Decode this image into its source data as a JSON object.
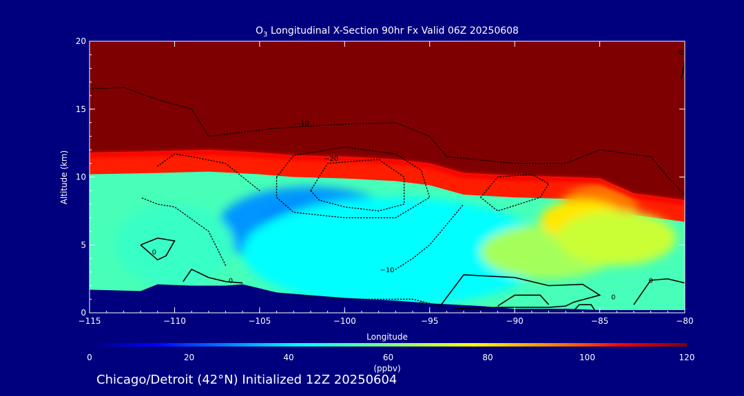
{
  "chart_data": {
    "type": "heatmap",
    "title_prefix": "O",
    "title_subscript": "3",
    "title_rest": " Longitudinal X-Section 90hr  Fx Valid 06Z 20250608",
    "xlabel": "Longitude",
    "ylabel": "Altitude (km)",
    "xlim": [
      -115,
      -80
    ],
    "ylim": [
      0,
      20
    ],
    "x_ticks": [
      -115,
      -110,
      -105,
      -100,
      -95,
      -90,
      -85,
      -80
    ],
    "x_tick_labels": [
      "−115",
      "−110",
      "−105",
      "−100",
      "−95",
      "−90",
      "−85",
      "−80"
    ],
    "y_ticks": [
      0,
      5,
      10,
      15,
      20
    ],
    "y_tick_labels": [
      "0",
      "5",
      "10",
      "15",
      "20"
    ],
    "colorbar": {
      "min": 0,
      "max": 120,
      "ticks": [
        0,
        20,
        40,
        60,
        80,
        100,
        120
      ],
      "tick_labels": [
        "0",
        "20",
        "40",
        "60",
        "80",
        "100",
        "120"
      ],
      "unit_label": "(ppbv)"
    },
    "tropopause_km": [
      [
        -115,
        11.8
      ],
      [
        -111,
        11.9
      ],
      [
        -108,
        12.0
      ],
      [
        -105,
        11.8
      ],
      [
        -103,
        11.6
      ],
      [
        -100,
        11.5
      ],
      [
        -97,
        11.3
      ],
      [
        -95,
        11.0
      ],
      [
        -93,
        10.3
      ],
      [
        -90,
        10.1
      ],
      [
        -87,
        10.0
      ],
      [
        -85,
        9.9
      ],
      [
        -83,
        8.8
      ],
      [
        -80,
        8.3
      ]
    ],
    "terrain_km": [
      [
        -115,
        1.7
      ],
      [
        -112,
        1.6
      ],
      [
        -111,
        2.1
      ],
      [
        -109,
        2.0
      ],
      [
        -107,
        2.0
      ],
      [
        -106,
        2.1
      ],
      [
        -104,
        1.5
      ],
      [
        -102,
        1.3
      ],
      [
        -100,
        1.1
      ],
      [
        -97,
        0.9
      ],
      [
        -95,
        0.7
      ],
      [
        -92,
        0.5
      ],
      [
        -90,
        0.3
      ],
      [
        -87,
        0.3
      ],
      [
        -85,
        0.2
      ],
      [
        -80,
        0.2
      ]
    ],
    "anomalies": [
      {
        "lon": -102,
        "alt": 6.3,
        "rx": 5.5,
        "ry": 3.0,
        "value": 30
      },
      {
        "lon": -102,
        "alt": 6.4,
        "rx": 3.0,
        "ry": 1.5,
        "value": 25
      },
      {
        "lon": -97,
        "alt": 4.5,
        "rx": 9.0,
        "ry": 4.0,
        "value": 42
      },
      {
        "lon": -110,
        "alt": 5.0,
        "rx": 3.5,
        "ry": 3.0,
        "value": 50
      },
      {
        "lon": -88,
        "alt": 4.5,
        "rx": 4.0,
        "ry": 2.0,
        "value": 65
      },
      {
        "lon": -85,
        "alt": 8.0,
        "rx": 2.2,
        "ry": 1.5,
        "value": 95
      },
      {
        "lon": -86,
        "alt": 6.8,
        "rx": 2.5,
        "ry": 1.5,
        "value": 80
      },
      {
        "lon": -84,
        "alt": 5.5,
        "rx": 3.5,
        "ry": 2.0,
        "value": 70
      }
    ],
    "contours": [
      {
        "style": "solid",
        "points": [
          [
            -112,
            5.0
          ],
          [
            -111,
            5.5
          ],
          [
            -110,
            5.3
          ],
          [
            -110.5,
            4.2
          ],
          [
            -111,
            3.9
          ],
          [
            -112,
            5.0
          ]
        ]
      },
      {
        "style": "solid",
        "points": [
          [
            -109.5,
            2.3
          ],
          [
            -109,
            3.2
          ],
          [
            -108,
            2.6
          ],
          [
            -107,
            2.3
          ],
          [
            -106,
            2.2
          ]
        ]
      },
      {
        "style": "solid",
        "points": [
          [
            -94.5,
            0.3
          ],
          [
            -93,
            2.8
          ],
          [
            -90,
            2.6
          ],
          [
            -88,
            2.0
          ],
          [
            -86,
            2.1
          ],
          [
            -85,
            1.3
          ],
          [
            -86.5,
            0.8
          ],
          [
            -87,
            0.5
          ],
          [
            -88,
            0.4
          ],
          [
            -91,
            0.4
          ],
          [
            -93.5,
            0.3
          ]
        ]
      },
      {
        "style": "solid",
        "points": [
          [
            -91,
            0.5
          ],
          [
            -90,
            1.3
          ],
          [
            -88.5,
            1.3
          ],
          [
            -88,
            0.6
          ]
        ]
      },
      {
        "style": "solid",
        "points": [
          [
            -86.5,
            0.2
          ],
          [
            -86.2,
            0.6
          ],
          [
            -85.5,
            0.6
          ],
          [
            -85.3,
            0.2
          ]
        ]
      },
      {
        "style": "solid",
        "points": [
          [
            -83,
            0.6
          ],
          [
            -82,
            2.4
          ],
          [
            -81,
            2.5
          ],
          [
            -80,
            2.2
          ]
        ]
      },
      {
        "style": "solid",
        "points": [
          [
            -80.2,
            17.2
          ],
          [
            -80,
            18.5
          ],
          [
            -79.9,
            19.0
          ]
        ]
      },
      {
        "style": "dotted",
        "points": [
          [
            -115,
            16.5
          ],
          [
            -113,
            16.6
          ],
          [
            -111,
            15.7
          ],
          [
            -109,
            15.0
          ],
          [
            -108,
            13.0
          ],
          [
            -104,
            13.6
          ],
          [
            -100,
            13.9
          ],
          [
            -97,
            14.0
          ],
          [
            -95,
            13.0
          ],
          [
            -94,
            11.5
          ],
          [
            -90,
            11.0
          ],
          [
            -87,
            11.0
          ],
          [
            -85,
            12.0
          ],
          [
            -82,
            11.5
          ],
          [
            -81,
            10.0
          ],
          [
            -80,
            8.7
          ]
        ]
      },
      {
        "style": "dotted",
        "points": [
          [
            -111,
            10.8
          ],
          [
            -110,
            11.7
          ],
          [
            -109,
            11.5
          ],
          [
            -107,
            11.0
          ],
          [
            -106,
            10.0
          ],
          [
            -105,
            9.0
          ]
        ]
      },
      {
        "style": "dotted",
        "points": [
          [
            -104,
            10.0
          ],
          [
            -103,
            11.6
          ],
          [
            -100,
            12.2
          ],
          [
            -97,
            11.7
          ],
          [
            -95.5,
            10.5
          ],
          [
            -95,
            8.5
          ],
          [
            -97,
            7.0
          ],
          [
            -100,
            7.0
          ],
          [
            -103,
            7.4
          ],
          [
            -104,
            8.5
          ],
          [
            -104,
            10.0
          ]
        ]
      },
      {
        "style": "dotted",
        "points": [
          [
            -102,
            9.0
          ],
          [
            -101,
            11.0
          ],
          [
            -98,
            11.3
          ],
          [
            -96.5,
            10.0
          ],
          [
            -96.5,
            8.0
          ],
          [
            -98,
            7.5
          ],
          [
            -100,
            7.8
          ],
          [
            -101.5,
            8.3
          ],
          [
            -102,
            9.0
          ]
        ]
      },
      {
        "style": "dotted",
        "points": [
          [
            -107,
            3.5
          ],
          [
            -108,
            6.0
          ],
          [
            -110,
            7.8
          ],
          [
            -111,
            8.0
          ],
          [
            -112,
            8.5
          ]
        ]
      },
      {
        "style": "dotted",
        "points": [
          [
            -97,
            3.2
          ],
          [
            -96,
            4.0
          ],
          [
            -95,
            5.0
          ],
          [
            -94,
            6.5
          ],
          [
            -93,
            8.0
          ]
        ]
      },
      {
        "style": "dotted",
        "points": [
          [
            -92,
            8.5
          ],
          [
            -91,
            10.0
          ],
          [
            -89,
            10.2
          ],
          [
            -88,
            9.5
          ],
          [
            -88.5,
            8.5
          ],
          [
            -91,
            7.5
          ],
          [
            -92,
            8.5
          ]
        ]
      },
      {
        "style": "dotted",
        "points": [
          [
            -94,
            0.4
          ],
          [
            -96,
            1.0
          ],
          [
            -100,
            1.0
          ],
          [
            -103,
            1.3
          ]
        ]
      }
    ],
    "contour_labels": [
      {
        "text": "0",
        "lon": -111.2,
        "alt": 4.3
      },
      {
        "text": "0",
        "lon": -106.7,
        "alt": 2.2
      },
      {
        "text": "0",
        "lon": -95.5,
        "alt": 0.5
      },
      {
        "text": "0",
        "lon": -84.2,
        "alt": 1.0
      },
      {
        "text": "0",
        "lon": -82.0,
        "alt": 2.2
      },
      {
        "text": "0",
        "lon": -80.2,
        "alt": 19.0
      },
      {
        "text": "−10",
        "lon": -97.5,
        "alt": 3.0
      },
      {
        "text": "−10",
        "lon": -102.5,
        "alt": 13.8
      },
      {
        "text": "−20",
        "lon": -100.8,
        "alt": 11.2
      }
    ]
  },
  "footer": {
    "caption": "Chicago/Detroit (42°N) Initialized 12Z 20250604"
  }
}
